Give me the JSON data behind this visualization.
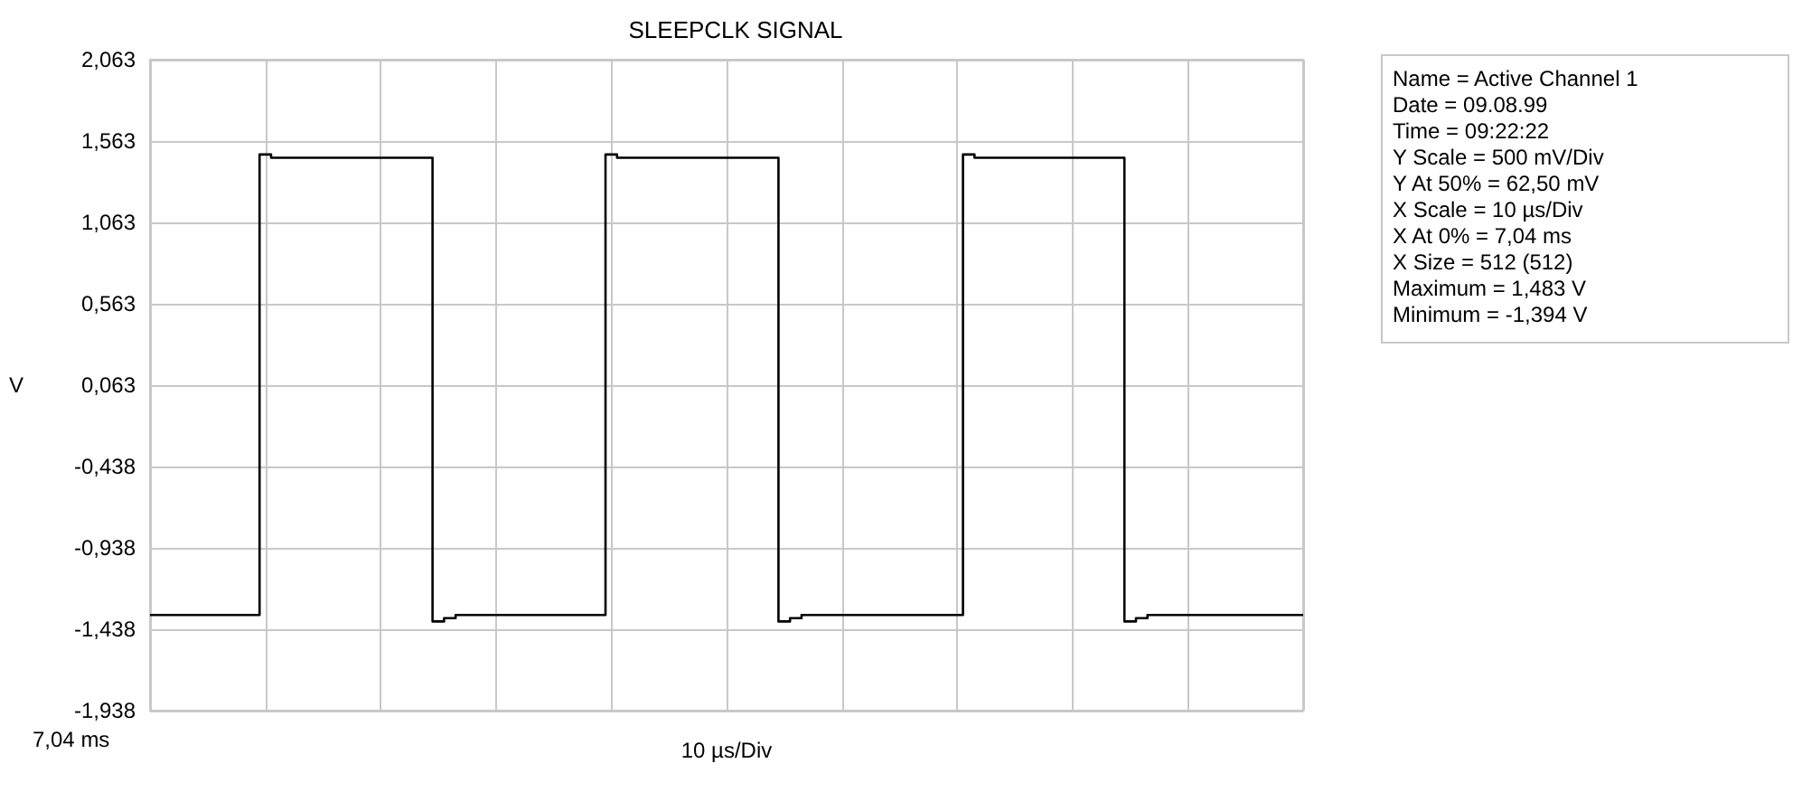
{
  "chart_data": {
    "type": "step",
    "title": "SLEEPCLK SIGNAL",
    "xlabel": "10 µs/Div",
    "ylabel": "V",
    "categories": [
      null,
      null,
      null,
      null,
      null,
      null,
      null,
      null,
      null,
      null,
      null,
      null,
      null,
      null,
      null,
      null,
      null,
      null,
      null,
      null,
      null,
      null,
      null,
      null,
      null,
      null,
      null,
      null,
      null,
      null,
      null,
      null,
      null,
      null,
      null,
      null,
      null,
      null,
      null,
      null,
      null,
      null,
      null,
      null,
      null,
      null,
      null,
      null,
      null,
      null,
      null,
      null,
      null,
      null,
      null,
      null,
      null,
      null,
      null,
      null,
      null,
      null,
      null,
      null,
      null,
      null,
      null,
      null,
      null,
      null,
      null,
      null,
      null,
      null,
      null,
      null,
      null,
      null,
      null,
      null,
      null,
      null,
      null,
      null,
      null,
      null,
      null,
      null,
      null,
      null,
      null,
      null,
      null,
      null,
      null,
      null,
      null,
      null,
      null,
      null,
      null
    ],
    "series": [
      {
        "color": "#000000",
        "values": [
          -1.35,
          -1.35,
          -1.35,
          -1.35,
          -1.35,
          -1.35,
          -1.35,
          -1.35,
          -1.35,
          -1.35,
          1.48,
          1.46,
          1.46,
          1.46,
          1.46,
          1.46,
          1.46,
          1.46,
          1.46,
          1.46,
          1.46,
          1.46,
          1.46,
          1.46,
          1.46,
          -1.39,
          -1.37,
          -1.35,
          -1.35,
          -1.35,
          -1.35,
          -1.35,
          -1.35,
          -1.35,
          -1.35,
          -1.35,
          -1.35,
          -1.35,
          -1.35,
          -1.35,
          1.48,
          1.46,
          1.46,
          1.46,
          1.46,
          1.46,
          1.46,
          1.46,
          1.46,
          1.46,
          1.46,
          1.46,
          1.46,
          1.46,
          1.46,
          -1.39,
          -1.37,
          -1.35,
          -1.35,
          -1.35,
          -1.35,
          -1.35,
          -1.35,
          -1.35,
          -1.35,
          -1.35,
          -1.35,
          -1.35,
          -1.35,
          -1.35,
          -1.35,
          1.48,
          1.46,
          1.46,
          1.46,
          1.46,
          1.46,
          1.46,
          1.46,
          1.46,
          1.46,
          1.46,
          1.46,
          1.46,
          1.46,
          -1.39,
          -1.37,
          -1.35,
          -1.35,
          -1.35,
          -1.35,
          -1.35,
          -1.35,
          -1.35,
          -1.35,
          -1.35,
          -1.35,
          -1.35,
          -1.35,
          -1.35,
          -1.35
        ]
      }
    ],
    "ylim": [
      -1.938,
      2.063
    ],
    "yticks": [
      {
        "value": -1.938,
        "label": "-1,938"
      },
      {
        "value": -1.438,
        "label": "-1,438"
      },
      {
        "value": -0.938,
        "label": "-0,938"
      },
      {
        "value": -0.438,
        "label": "-0,438"
      },
      {
        "value": 0.063,
        "label": "0,063"
      },
      {
        "value": 0.563,
        "label": "0,563"
      },
      {
        "value": 1.063,
        "label": "1,063"
      },
      {
        "value": 1.563,
        "label": "1,563"
      },
      {
        "value": 2.063,
        "label": "2,063"
      }
    ],
    "grid": true,
    "marker": "none",
    "line_style": "solid",
    "annotations": [
      "7,04 ms",
      "Name = Active Channel 1",
      "Date = 09.08.99",
      "Time = 09:22:22",
      "Y Scale = 500 mV/Div",
      "Y At 50% = 62,50 mV",
      "X Scale = 10 µs/Div",
      "X At 0% = 7,04 ms",
      "X Size = 512 (512)",
      "Maximum = 1,483 V",
      "Minimum = -1,394 V"
    ]
  }
}
